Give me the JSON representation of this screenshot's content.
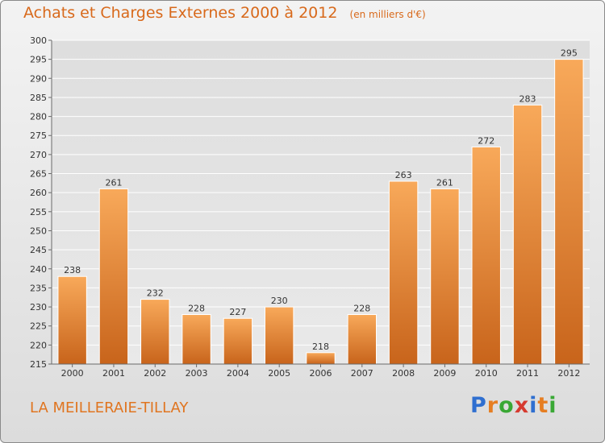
{
  "title": "Achats et Charges Externes 2000 à 2012",
  "unit_note": "(en milliers d'€)",
  "place": "LA MEILLERAIE-TILLAY",
  "brand": {
    "letters": [
      "P",
      "r",
      "o",
      "x",
      "i",
      "t",
      "i"
    ],
    "colors": [
      "#2f6fd0",
      "#e67e22",
      "#3aa835",
      "#d63a2f",
      "#2f6fd0",
      "#e67e22",
      "#3aa835"
    ]
  },
  "colors": {
    "bar_light": "#f8a95a",
    "bar_dark": "#c8641b",
    "grid": "#ffffff",
    "axis": "#6a6a6a",
    "text": "#333333"
  },
  "chart_data": {
    "type": "bar",
    "categories": [
      "2000",
      "2001",
      "2002",
      "2003",
      "2004",
      "2005",
      "2006",
      "2007",
      "2008",
      "2009",
      "2010",
      "2011",
      "2012"
    ],
    "values": [
      238,
      261,
      232,
      228,
      227,
      230,
      218,
      228,
      263,
      261,
      272,
      283,
      295
    ],
    "ylim": [
      215,
      300
    ],
    "yticks": [
      215,
      220,
      225,
      230,
      235,
      240,
      245,
      250,
      255,
      260,
      265,
      270,
      275,
      280,
      285,
      290,
      295,
      300
    ],
    "grid": true
  }
}
